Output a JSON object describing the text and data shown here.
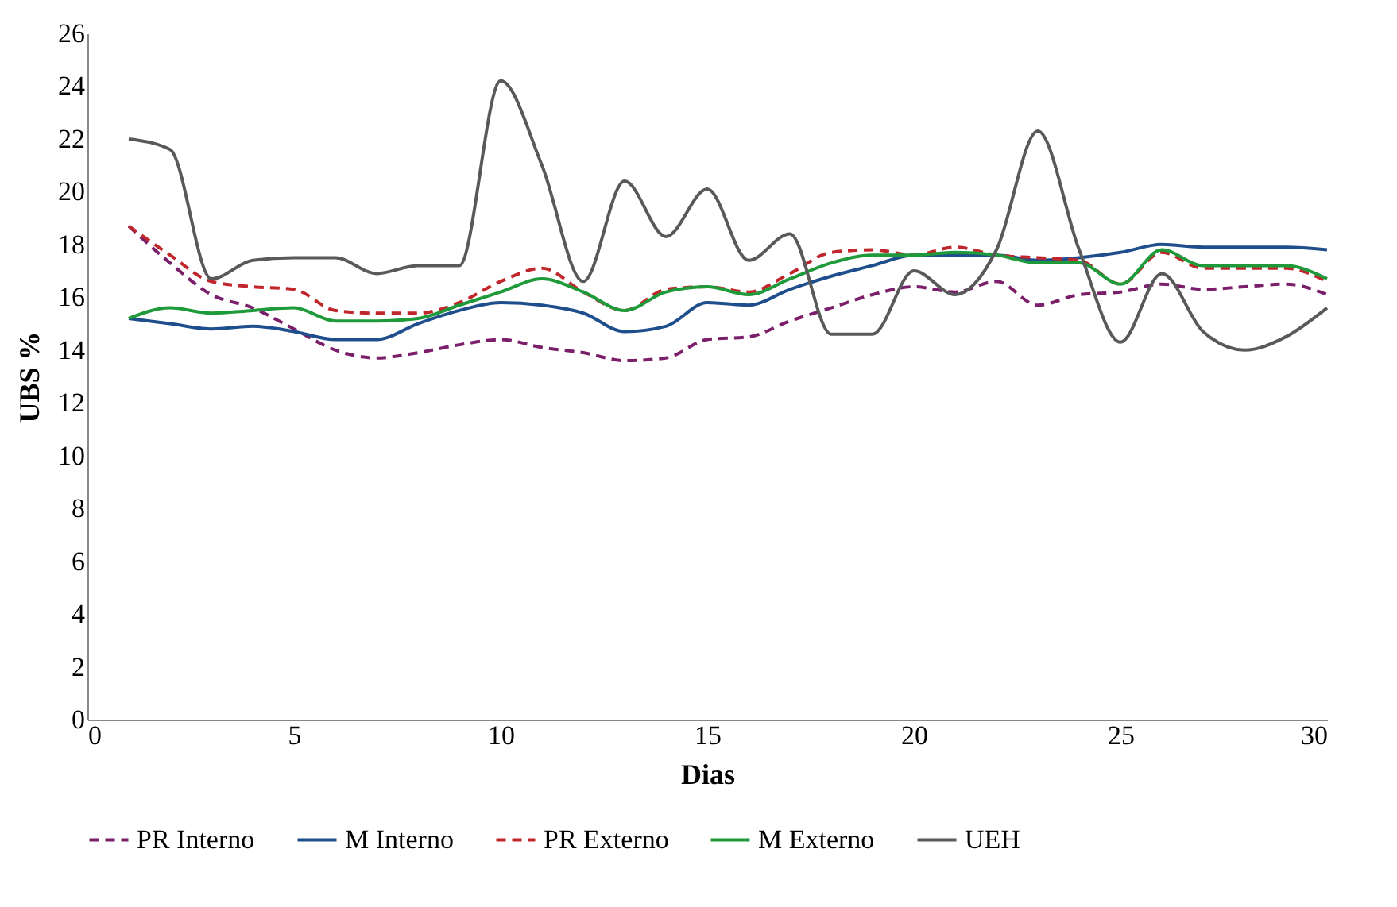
{
  "chart_data": {
    "type": "line",
    "xlabel": "Dias",
    "ylabel": "UBS %",
    "x": [
      1,
      2,
      3,
      4,
      5,
      6,
      7,
      8,
      9,
      10,
      11,
      12,
      13,
      14,
      15,
      16,
      17,
      18,
      19,
      20,
      21,
      22,
      23,
      24,
      25,
      26,
      27,
      28,
      29,
      30
    ],
    "xlim": [
      0,
      30
    ],
    "xticks": [
      0,
      5,
      10,
      15,
      20,
      25,
      30
    ],
    "ylim": [
      0,
      26
    ],
    "yticks": [
      0,
      2,
      4,
      6,
      8,
      10,
      12,
      14,
      16,
      18,
      20,
      22,
      24,
      26
    ],
    "grid": false,
    "legend": "bottom",
    "series": [
      {
        "name": "PR Interno",
        "color": "#7b1f6b",
        "line_style": "dashed",
        "values": [
          18.7,
          17.3,
          16.1,
          15.6,
          14.8,
          14.0,
          13.7,
          13.9,
          14.2,
          14.4,
          14.1,
          13.9,
          13.6,
          13.7,
          14.4,
          14.5,
          15.1,
          15.6,
          16.1,
          16.4,
          16.2,
          16.6,
          15.7,
          16.1,
          16.2,
          16.5,
          16.3,
          16.4,
          16.5,
          16.1
        ]
      },
      {
        "name": "M Interno",
        "color": "#1f4e8c",
        "line_style": "solid",
        "values": [
          15.2,
          15.0,
          14.8,
          14.9,
          14.7,
          14.4,
          14.4,
          15.0,
          15.5,
          15.8,
          15.7,
          15.4,
          14.7,
          14.9,
          15.8,
          15.7,
          16.3,
          16.8,
          17.2,
          17.6,
          17.6,
          17.6,
          17.4,
          17.5,
          17.7,
          18.0,
          17.9,
          17.9,
          17.9,
          17.8
        ]
      },
      {
        "name": "PR Externo",
        "color": "#c0272d",
        "line_style": "dashed",
        "values": [
          18.7,
          17.6,
          16.6,
          16.4,
          16.3,
          15.5,
          15.4,
          15.4,
          15.8,
          16.6,
          17.1,
          16.2,
          15.5,
          16.3,
          16.4,
          16.2,
          16.9,
          17.7,
          17.8,
          17.6,
          17.9,
          17.6,
          17.5,
          17.4,
          16.5,
          17.7,
          17.1,
          17.1,
          17.1,
          16.6
        ]
      },
      {
        "name": "M Externo",
        "color": "#1e9a3a",
        "line_style": "solid",
        "values": [
          15.2,
          15.6,
          15.4,
          15.5,
          15.6,
          15.1,
          15.1,
          15.2,
          15.7,
          16.2,
          16.7,
          16.2,
          15.5,
          16.2,
          16.4,
          16.1,
          16.7,
          17.3,
          17.6,
          17.6,
          17.7,
          17.6,
          17.3,
          17.3,
          16.5,
          17.8,
          17.2,
          17.2,
          17.2,
          16.7
        ]
      },
      {
        "name": "UEH",
        "color": "#595959",
        "line_style": "solid",
        "values": [
          22.0,
          21.6,
          16.7,
          17.4,
          17.5,
          17.5,
          16.9,
          17.2,
          17.2,
          24.2,
          21.0,
          16.6,
          20.4,
          18.3,
          20.1,
          17.4,
          18.4,
          14.6,
          14.6,
          17.0,
          16.1,
          17.8,
          22.3,
          17.8,
          14.3,
          16.9,
          14.7,
          14.0,
          14.5,
          15.6
        ]
      }
    ]
  }
}
